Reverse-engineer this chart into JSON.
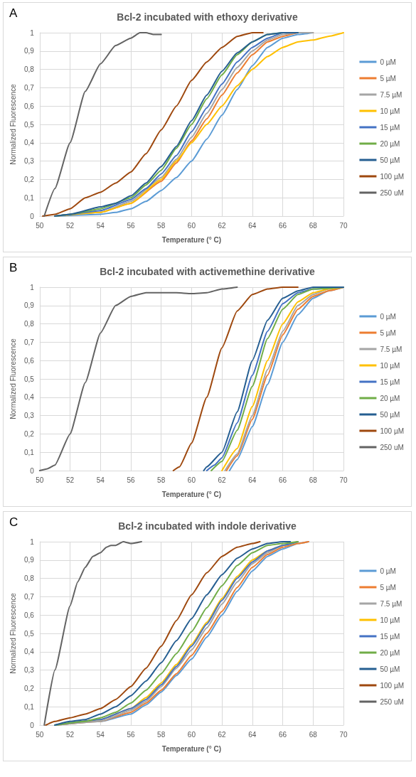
{
  "chart_data": [
    {
      "type": "line",
      "title": "Bcl-2 incubated with ethoxy derivative",
      "xlabel": "Temperature (° C)",
      "ylabel": "Normalized Fluorescence",
      "annotations": [
        "A"
      ],
      "xlim": [
        50,
        70
      ],
      "xticks": [
        50,
        52,
        54,
        56,
        58,
        60,
        62,
        64,
        66,
        68,
        70
      ],
      "ylim": [
        0,
        1
      ],
      "yticks": [
        {
          "value": 0,
          "label": "0"
        },
        {
          "value": 0.1,
          "label": "0,1"
        },
        {
          "value": 0.2,
          "label": "0,2"
        },
        {
          "value": 0.3,
          "label": "0,3"
        },
        {
          "value": 0.4,
          "label": "0,4"
        },
        {
          "value": 0.5,
          "label": "0,5"
        },
        {
          "value": 0.6,
          "label": "0,6"
        },
        {
          "value": 0.7,
          "label": "0,7"
        },
        {
          "value": 0.8,
          "label": "0,8"
        },
        {
          "value": 0.9,
          "label": "0,9"
        },
        {
          "value": 1,
          "label": "1"
        }
      ],
      "grid": true,
      "legend": "right",
      "marker": "none",
      "line_style": "solid",
      "series": [
        {
          "name": "0 µM",
          "color": "#5b9bd5",
          "x": [
            51,
            54,
            55,
            56,
            57,
            58,
            59,
            60,
            61,
            62,
            63,
            64,
            65,
            66,
            67,
            68
          ],
          "values": [
            0,
            0.01,
            0.02,
            0.04,
            0.08,
            0.14,
            0.21,
            0.3,
            0.42,
            0.55,
            0.69,
            0.82,
            0.92,
            0.97,
            0.99,
            1
          ]
        },
        {
          "name": "5 µM",
          "color": "#ed7d31",
          "x": [
            51,
            54,
            56,
            58,
            59,
            60,
            61,
            62,
            63,
            64,
            65,
            66,
            67,
            68
          ],
          "values": [
            0,
            0.02,
            0.07,
            0.19,
            0.29,
            0.41,
            0.53,
            0.66,
            0.78,
            0.88,
            0.95,
            0.98,
            1,
            1
          ]
        },
        {
          "name": "7.5 µM",
          "color": "#a5a5a5",
          "x": [
            51,
            54,
            56,
            58,
            59,
            60,
            61,
            62,
            63,
            64,
            65,
            66,
            67,
            68
          ],
          "values": [
            0,
            0.02,
            0.08,
            0.21,
            0.31,
            0.43,
            0.56,
            0.69,
            0.81,
            0.9,
            0.96,
            0.99,
            1,
            1
          ]
        },
        {
          "name": "10 µM",
          "color": "#ffc000",
          "x": [
            51,
            54,
            56,
            58,
            59,
            60,
            61,
            62,
            63,
            64,
            65,
            66,
            67,
            68,
            69,
            70
          ],
          "values": [
            0,
            0.02,
            0.07,
            0.2,
            0.3,
            0.4,
            0.5,
            0.6,
            0.71,
            0.8,
            0.87,
            0.92,
            0.95,
            0.96,
            0.98,
            1
          ]
        },
        {
          "name": "15 µM",
          "color": "#4472c4",
          "x": [
            51,
            52,
            54,
            56,
            57,
            58,
            59,
            60,
            61,
            62,
            63,
            64,
            65,
            66,
            67
          ],
          "values": [
            0,
            0.01,
            0.03,
            0.09,
            0.15,
            0.23,
            0.33,
            0.46,
            0.59,
            0.72,
            0.84,
            0.92,
            0.97,
            1,
            1
          ]
        },
        {
          "name": "20 µM",
          "color": "#70ad47",
          "x": [
            51,
            52,
            54,
            56,
            57,
            58,
            59,
            60,
            61,
            62,
            63,
            64,
            65,
            66,
            67
          ],
          "values": [
            0,
            0.01,
            0.04,
            0.1,
            0.17,
            0.25,
            0.37,
            0.5,
            0.64,
            0.77,
            0.88,
            0.95,
            0.99,
            1,
            1
          ]
        },
        {
          "name": "50 µM",
          "color": "#255e91",
          "x": [
            51,
            52,
            54,
            55,
            56,
            57,
            58,
            59,
            60,
            61,
            62,
            63,
            64,
            65,
            66,
            67
          ],
          "values": [
            0,
            0.01,
            0.05,
            0.07,
            0.11,
            0.18,
            0.27,
            0.38,
            0.52,
            0.66,
            0.79,
            0.89,
            0.95,
            0.99,
            1,
            1
          ]
        },
        {
          "name": "100 µM",
          "color": "#9e480e",
          "x": [
            50.2,
            51,
            52,
            53,
            54,
            55,
            56,
            57,
            58,
            59,
            60,
            61,
            62,
            63,
            64,
            64.7
          ],
          "values": [
            0,
            0.01,
            0.04,
            0.1,
            0.13,
            0.18,
            0.24,
            0.34,
            0.47,
            0.6,
            0.74,
            0.84,
            0.92,
            0.98,
            1,
            1
          ]
        },
        {
          "name": "250 uM",
          "color": "#636363",
          "x": [
            50.3,
            51,
            52,
            53,
            54,
            55,
            56,
            56.6,
            57,
            57.5,
            58
          ],
          "values": [
            0,
            0.15,
            0.4,
            0.68,
            0.83,
            0.93,
            0.97,
            1,
            1,
            0.99,
            0.99
          ]
        }
      ]
    },
    {
      "type": "line",
      "title": "Bcl-2 incubated with activemethine derivative",
      "xlabel": "Temperature (° C)",
      "ylabel": "Normalized Fluorescence",
      "annotations": [
        "B"
      ],
      "xlim": [
        50,
        70
      ],
      "xticks": [
        50,
        52,
        54,
        56,
        58,
        60,
        62,
        64,
        66,
        68,
        70
      ],
      "ylim": [
        0,
        1
      ],
      "yticks": [
        {
          "value": 0,
          "label": "0"
        },
        {
          "value": 0.1,
          "label": "0,1"
        },
        {
          "value": 0.2,
          "label": "0,2"
        },
        {
          "value": 0.3,
          "label": "0,3"
        },
        {
          "value": 0.4,
          "label": "0,4"
        },
        {
          "value": 0.5,
          "label": "0,5"
        },
        {
          "value": 0.6,
          "label": "0,6"
        },
        {
          "value": 0.7,
          "label": "0,7"
        },
        {
          "value": 0.8,
          "label": "0,8"
        },
        {
          "value": 0.9,
          "label": "0,9"
        },
        {
          "value": 1,
          "label": "1"
        }
      ],
      "grid": true,
      "legend": "right",
      "marker": "none",
      "line_style": "solid",
      "series": [
        {
          "name": "0 µM",
          "color": "#5b9bd5",
          "x": [
            62.5,
            63,
            64,
            65,
            66,
            67,
            68,
            69,
            70
          ],
          "values": [
            0,
            0.06,
            0.24,
            0.47,
            0.7,
            0.85,
            0.94,
            0.98,
            1
          ]
        },
        {
          "name": "5 µM",
          "color": "#ed7d31",
          "x": [
            62.3,
            63,
            64,
            65,
            66,
            67,
            68,
            69,
            70
          ],
          "values": [
            0,
            0.08,
            0.28,
            0.52,
            0.74,
            0.88,
            0.95,
            0.98,
            1
          ]
        },
        {
          "name": "7.5 µM",
          "color": "#a5a5a5",
          "x": [
            62.2,
            63,
            64,
            65,
            66,
            67,
            68,
            69,
            70
          ],
          "values": [
            0,
            0.09,
            0.3,
            0.55,
            0.76,
            0.9,
            0.96,
            0.99,
            1
          ]
        },
        {
          "name": "10 µM",
          "color": "#ffc000",
          "x": [
            62,
            63,
            64,
            65,
            66,
            67,
            68,
            69,
            70
          ],
          "values": [
            0,
            0.12,
            0.35,
            0.6,
            0.8,
            0.92,
            0.97,
            0.99,
            1
          ]
        },
        {
          "name": "15 µM",
          "color": "#4472c4",
          "x": [
            61,
            61.5,
            62,
            63,
            64,
            65,
            66,
            67,
            68,
            70
          ],
          "values": [
            0,
            0.03,
            0.07,
            0.26,
            0.52,
            0.76,
            0.91,
            0.97,
            0.99,
            1
          ]
        },
        {
          "name": "20 µM",
          "color": "#70ad47",
          "x": [
            61.3,
            62,
            63,
            64,
            65,
            66,
            67,
            68,
            70
          ],
          "values": [
            0,
            0.05,
            0.22,
            0.46,
            0.72,
            0.88,
            0.96,
            0.99,
            1
          ]
        },
        {
          "name": "50 µM",
          "color": "#255e91",
          "x": [
            60.8,
            61,
            62,
            63,
            64,
            65,
            66,
            67,
            68,
            70
          ],
          "values": [
            0,
            0.02,
            0.1,
            0.32,
            0.6,
            0.82,
            0.94,
            0.98,
            1,
            1
          ]
        },
        {
          "name": "100 µM",
          "color": "#9e480e",
          "x": [
            58.8,
            59.2,
            60,
            61,
            62,
            63,
            64,
            65,
            66,
            67
          ],
          "values": [
            0,
            0.02,
            0.15,
            0.4,
            0.67,
            0.87,
            0.96,
            0.99,
            1,
            1
          ]
        },
        {
          "name": "250 uM",
          "color": "#636363",
          "x": [
            50,
            50.5,
            51,
            52,
            53,
            54,
            55,
            56,
            57,
            58,
            59,
            60,
            61,
            62,
            63
          ],
          "values": [
            0,
            0.01,
            0.03,
            0.2,
            0.48,
            0.75,
            0.9,
            0.95,
            0.97,
            0.97,
            0.97,
            0.965,
            0.97,
            0.99,
            1
          ]
        }
      ]
    },
    {
      "type": "line",
      "title": "Bcl-2 incubated with indole derivative",
      "xlabel": "Temperature (° C)",
      "ylabel": "Normalized Fluorescence",
      "annotations": [
        "C"
      ],
      "xlim": [
        50,
        70
      ],
      "xticks": [
        50,
        52,
        54,
        56,
        58,
        60,
        62,
        64,
        66,
        68,
        70
      ],
      "ylim": [
        0,
        1
      ],
      "yticks": [
        {
          "value": 0,
          "label": "0"
        },
        {
          "value": 0.1,
          "label": "0,1"
        },
        {
          "value": 0.2,
          "label": "0,2"
        },
        {
          "value": 0.3,
          "label": "0,3"
        },
        {
          "value": 0.4,
          "label": "0,4"
        },
        {
          "value": 0.5,
          "label": "0,5"
        },
        {
          "value": 0.6,
          "label": "0,6"
        },
        {
          "value": 0.7,
          "label": "0,7"
        },
        {
          "value": 0.8,
          "label": "0,8"
        },
        {
          "value": 0.9,
          "label": "0,9"
        },
        {
          "value": 1,
          "label": "1"
        }
      ],
      "grid": true,
      "legend": "right",
      "marker": "none",
      "line_style": "solid",
      "series": [
        {
          "name": "0 µM",
          "color": "#5b9bd5",
          "x": [
            51,
            54,
            56,
            57,
            58,
            59,
            60,
            61,
            62,
            63,
            64,
            65,
            66,
            67,
            67.7
          ],
          "values": [
            0,
            0.02,
            0.06,
            0.11,
            0.18,
            0.27,
            0.36,
            0.48,
            0.6,
            0.73,
            0.84,
            0.92,
            0.96,
            0.99,
            1
          ]
        },
        {
          "name": "5 µM",
          "color": "#ed7d31",
          "x": [
            51,
            54,
            56,
            57,
            58,
            59,
            60,
            61,
            62,
            63,
            64,
            65,
            66,
            67,
            67.7
          ],
          "values": [
            0,
            0.02,
            0.07,
            0.12,
            0.19,
            0.28,
            0.38,
            0.5,
            0.62,
            0.75,
            0.86,
            0.93,
            0.97,
            0.99,
            1
          ]
        },
        {
          "name": "7.5 µM",
          "color": "#a5a5a5",
          "x": [
            51,
            54,
            56,
            57,
            58,
            59,
            60,
            61,
            62,
            63,
            64,
            65,
            66,
            67
          ],
          "values": [
            0,
            0.02,
            0.08,
            0.13,
            0.21,
            0.31,
            0.41,
            0.53,
            0.66,
            0.78,
            0.88,
            0.94,
            0.98,
            1
          ]
        },
        {
          "name": "10 µM",
          "color": "#ffc000",
          "x": [
            51,
            54,
            56,
            57,
            58,
            59,
            60,
            61,
            62,
            63,
            64,
            65,
            66,
            67
          ],
          "values": [
            0,
            0.03,
            0.09,
            0.15,
            0.23,
            0.33,
            0.44,
            0.56,
            0.69,
            0.81,
            0.9,
            0.95,
            0.98,
            1
          ]
        },
        {
          "name": "15 µM",
          "color": "#4472c4",
          "x": [
            51,
            54,
            56,
            57,
            58,
            59,
            60,
            61,
            62,
            63,
            64,
            65,
            66,
            67
          ],
          "values": [
            0,
            0.03,
            0.09,
            0.14,
            0.22,
            0.32,
            0.43,
            0.55,
            0.68,
            0.8,
            0.89,
            0.95,
            0.98,
            1
          ]
        },
        {
          "name": "20 µM",
          "color": "#70ad47",
          "x": [
            51,
            53,
            54,
            55,
            56,
            57,
            58,
            59,
            60,
            61,
            62,
            63,
            64,
            65,
            66,
            67
          ],
          "values": [
            0,
            0.02,
            0.04,
            0.07,
            0.12,
            0.19,
            0.28,
            0.39,
            0.51,
            0.64,
            0.76,
            0.87,
            0.94,
            0.98,
            0.99,
            1
          ]
        },
        {
          "name": "50 µM",
          "color": "#255e91",
          "x": [
            51,
            52,
            53,
            54,
            55,
            56,
            57,
            58,
            59,
            60,
            61,
            62,
            63,
            64,
            65,
            66,
            66.5
          ],
          "values": [
            0,
            0.02,
            0.03,
            0.06,
            0.1,
            0.16,
            0.24,
            0.34,
            0.46,
            0.58,
            0.71,
            0.82,
            0.91,
            0.96,
            0.99,
            1,
            1
          ]
        },
        {
          "name": "100 µM",
          "color": "#9e480e",
          "x": [
            50.4,
            51,
            52,
            53,
            54,
            55,
            56,
            57,
            58,
            59,
            60,
            61,
            62,
            63,
            64,
            64.5
          ],
          "values": [
            0,
            0.02,
            0.04,
            0.06,
            0.09,
            0.14,
            0.21,
            0.31,
            0.43,
            0.57,
            0.71,
            0.83,
            0.92,
            0.97,
            0.99,
            1
          ]
        },
        {
          "name": "250 uM",
          "color": "#636363",
          "x": [
            50.3,
            51,
            52,
            52.5,
            53,
            53.5,
            54,
            54.4,
            54.7,
            55,
            55.5,
            56,
            56.7
          ],
          "values": [
            0,
            0.3,
            0.65,
            0.78,
            0.86,
            0.92,
            0.94,
            0.97,
            0.98,
            0.98,
            1,
            0.99,
            1
          ]
        }
      ]
    }
  ]
}
